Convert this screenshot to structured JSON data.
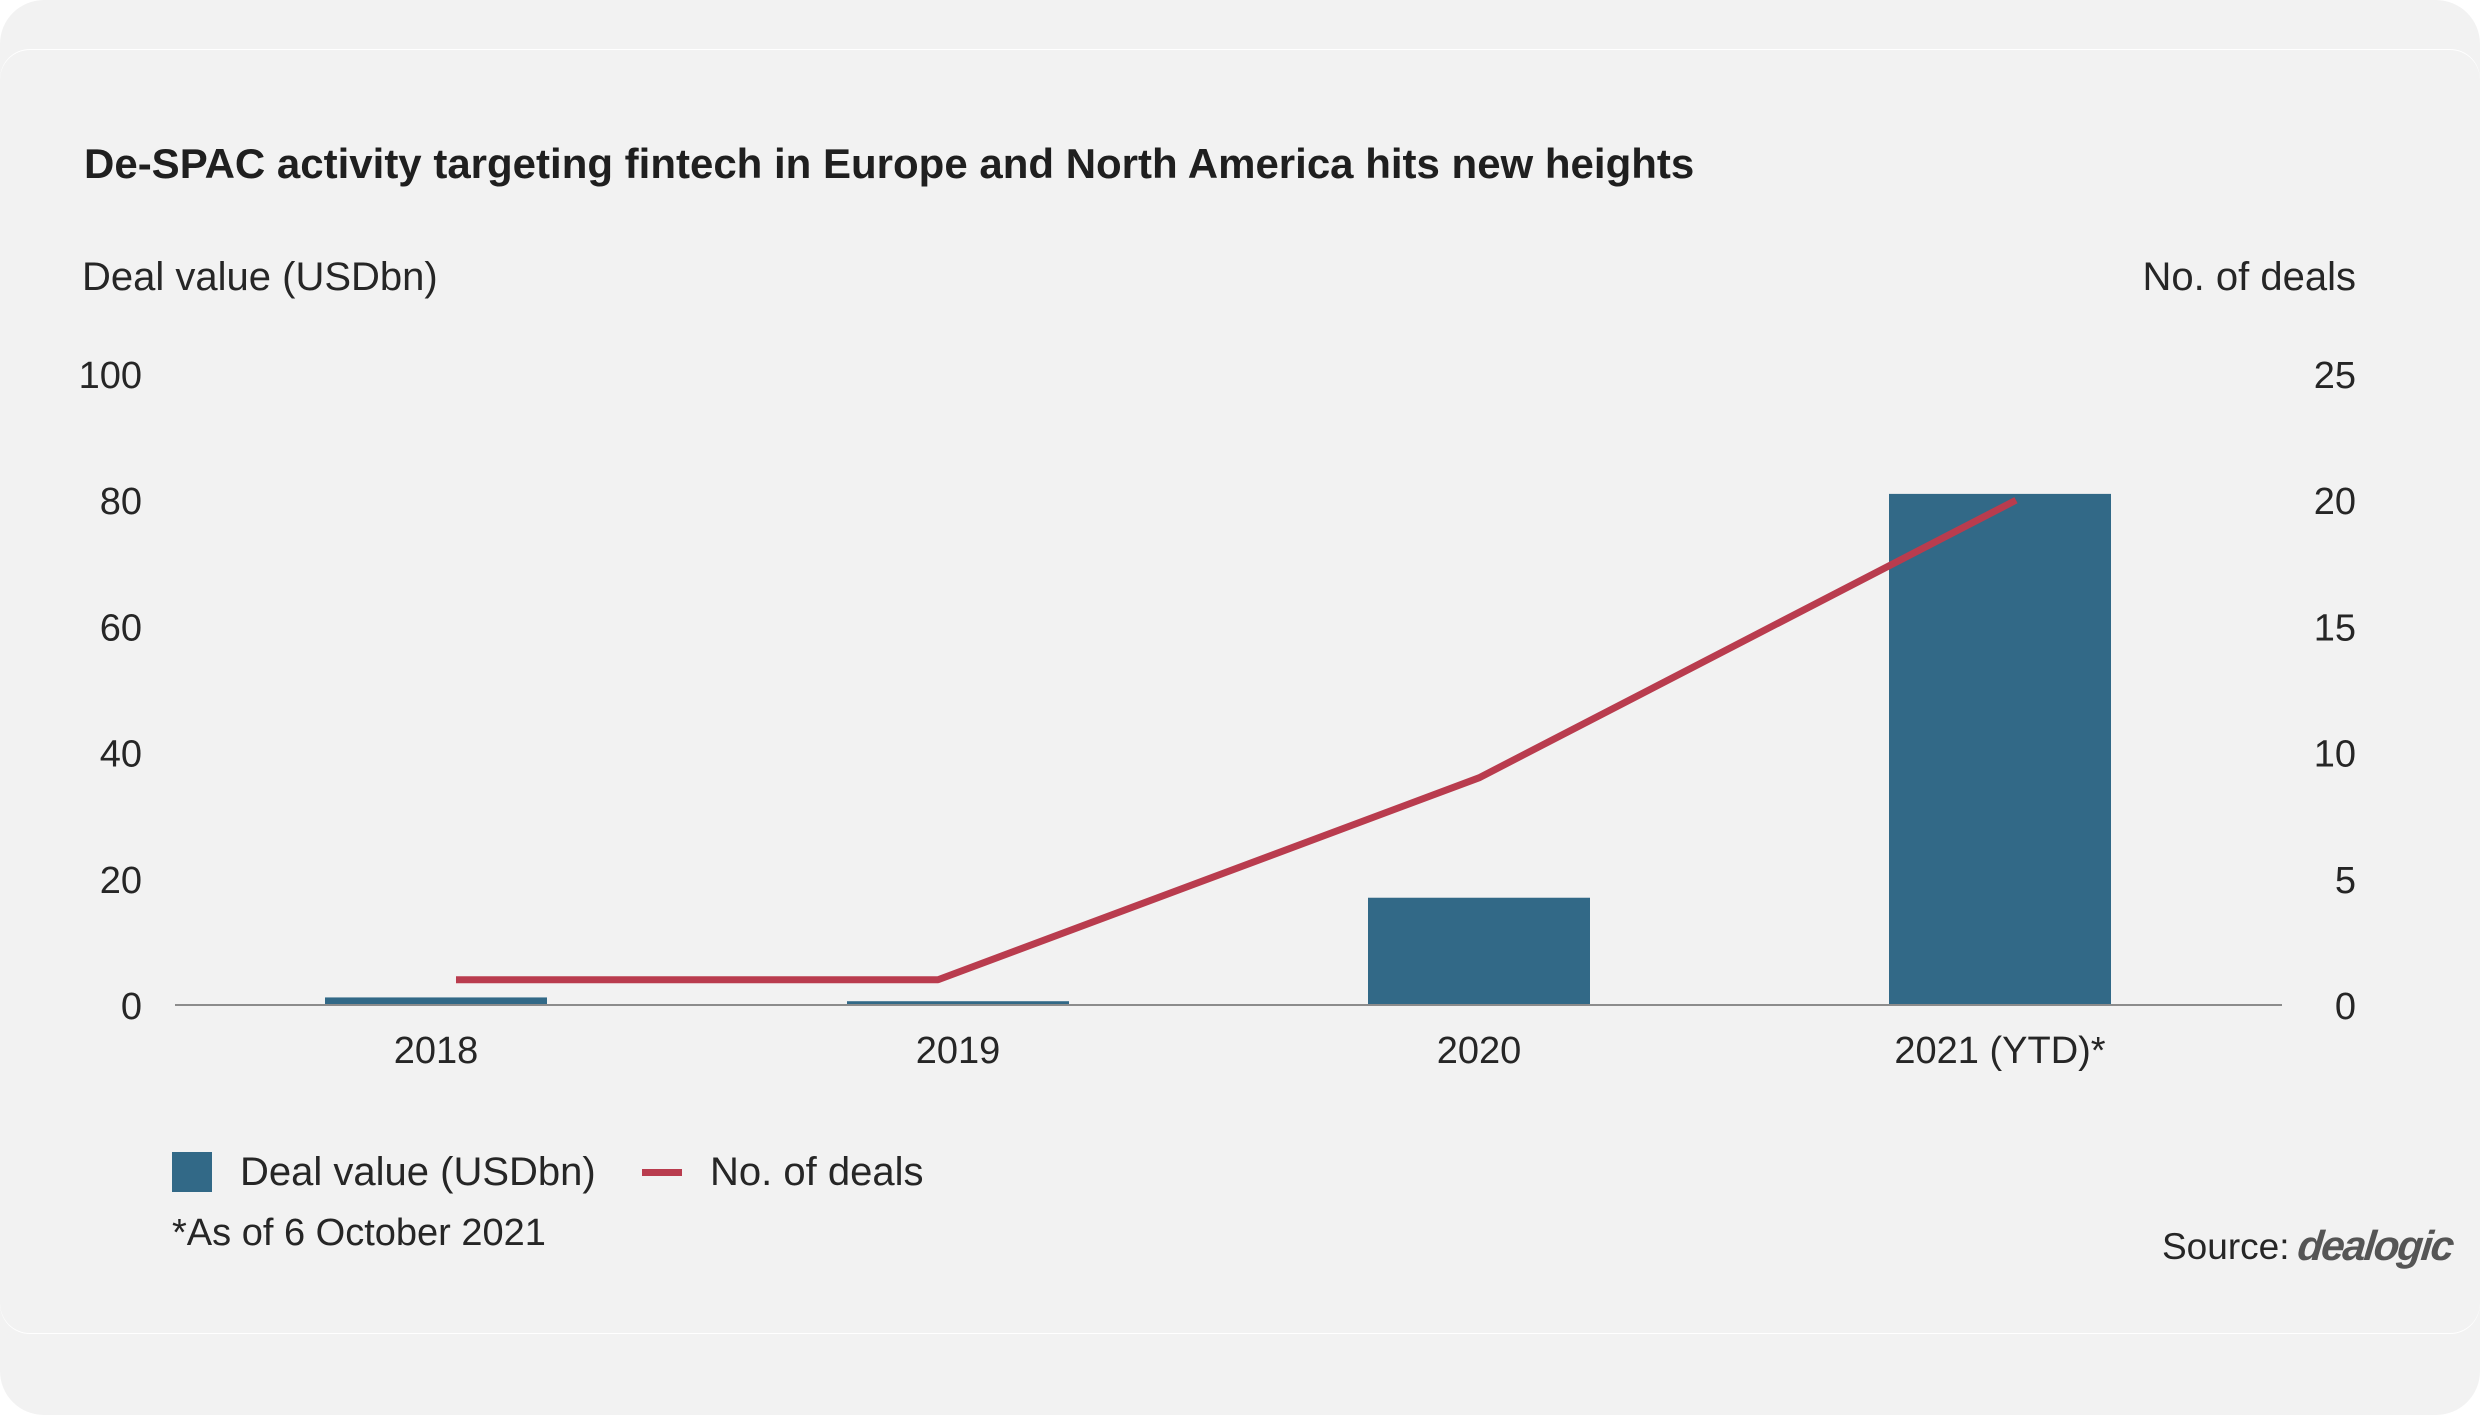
{
  "chart_data": {
    "type": "bar",
    "title": "De-SPAC activity targeting fintech in Europe and North America hits new heights",
    "categories": [
      "2018",
      "2019",
      "2020",
      "2021 (YTD)*"
    ],
    "series": [
      {
        "name": "Deal value (USDbn)",
        "type": "bar",
        "axis": "left",
        "values": [
          1.2,
          0.6,
          17,
          81
        ],
        "color": "#326987"
      },
      {
        "name": "No. of deals",
        "type": "line",
        "axis": "right",
        "values": [
          1,
          1,
          9,
          20
        ],
        "color": "#b93c4e"
      }
    ],
    "ylabel": "Deal value (USDbn)",
    "y2label": "No. of deals",
    "ylim": [
      0,
      100
    ],
    "y2lim": [
      0,
      25
    ],
    "yticks": [
      "0",
      "20",
      "40",
      "60",
      "80",
      "100"
    ],
    "y2ticks": [
      "0",
      "5",
      "10",
      "15",
      "20",
      "25"
    ],
    "grid": false,
    "legend": "bottom-left"
  },
  "footnote": "*As of 6 October 2021",
  "source_label": "Source:",
  "source_logo": "dealogic"
}
